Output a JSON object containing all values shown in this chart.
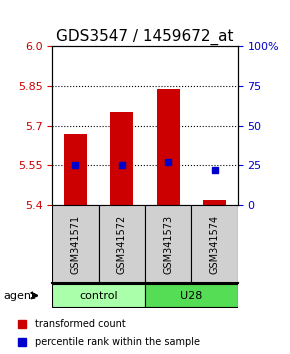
{
  "title": "GDS3547 / 1459672_at",
  "categories": [
    "GSM341571",
    "GSM341572",
    "GSM341573",
    "GSM341574"
  ],
  "bar_values": [
    5.67,
    5.75,
    5.84,
    5.42
  ],
  "bar_bottom": [
    5.4,
    5.4,
    5.4,
    5.4
  ],
  "percentile_values": [
    25,
    25,
    27,
    22
  ],
  "ylim": [
    5.4,
    6.0
  ],
  "y_ticks": [
    5.4,
    5.55,
    5.7,
    5.85,
    6.0
  ],
  "right_ylim": [
    0,
    100
  ],
  "right_ticks": [
    0,
    25,
    50,
    75,
    100
  ],
  "right_tick_labels": [
    "0",
    "25",
    "50",
    "75",
    "100%"
  ],
  "bar_color": "#cc0000",
  "dot_color": "#0000cc",
  "group_labels": [
    "control",
    "U28"
  ],
  "group_ranges": [
    [
      0,
      2
    ],
    [
      2,
      4
    ]
  ],
  "group_colors": [
    "#aaffaa",
    "#55dd55"
  ],
  "agent_label": "agent",
  "legend_bar_label": "transformed count",
  "legend_dot_label": "percentile rank within the sample",
  "dotted_line_y": [
    5.55,
    5.7,
    5.85
  ],
  "title_fontsize": 11,
  "tick_fontsize": 8,
  "bar_width": 0.5
}
